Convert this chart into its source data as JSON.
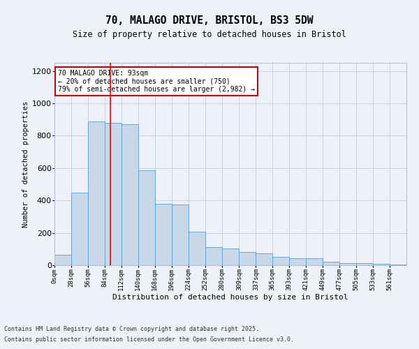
{
  "title_line1": "70, MALAGO DRIVE, BRISTOL, BS3 5DW",
  "title_line2": "Size of property relative to detached houses in Bristol",
  "xlabel": "Distribution of detached houses by size in Bristol",
  "ylabel": "Number of detached properties",
  "bar_values": [
    65,
    450,
    890,
    880,
    870,
    585,
    380,
    375,
    205,
    110,
    105,
    80,
    75,
    50,
    45,
    45,
    20,
    12,
    12,
    10,
    5
  ],
  "bin_labels": [
    "0sqm",
    "28sqm",
    "56sqm",
    "84sqm",
    "112sqm",
    "140sqm",
    "168sqm",
    "196sqm",
    "224sqm",
    "252sqm",
    "280sqm",
    "309sqm",
    "337sqm",
    "365sqm",
    "393sqm",
    "421sqm",
    "449sqm",
    "477sqm",
    "505sqm",
    "533sqm",
    "561sqm"
  ],
  "bin_edges": [
    0,
    28,
    56,
    84,
    112,
    140,
    168,
    196,
    224,
    252,
    280,
    309,
    337,
    365,
    393,
    421,
    449,
    477,
    505,
    533,
    561,
    589
  ],
  "bar_color": "#c8d8e8",
  "bar_edge_color": "#5a9ec8",
  "red_line_x": 93,
  "ylim": [
    0,
    1250
  ],
  "yticks": [
    0,
    200,
    400,
    600,
    800,
    1000,
    1200
  ],
  "annotation_text": "70 MALAGO DRIVE: 93sqm\n← 20% of detached houses are smaller (750)\n79% of semi-detached houses are larger (2,982) →",
  "annotation_box_color": "#ffffff",
  "annotation_box_edge": "#cc0000",
  "grid_color": "#c8d0e0",
  "background_color": "#eef2f8",
  "fig_background_color": "#eef2f8",
  "footer_line1": "Contains HM Land Registry data © Crown copyright and database right 2025.",
  "footer_line2": "Contains public sector information licensed under the Open Government Licence v3.0."
}
